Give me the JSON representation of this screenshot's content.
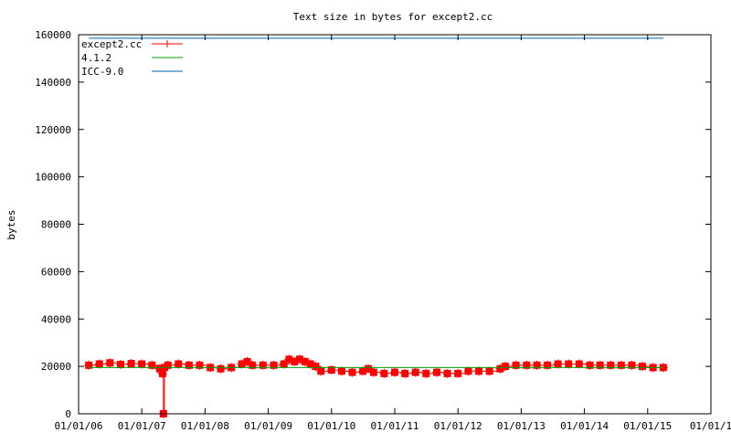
{
  "chart_data": {
    "type": "line",
    "title": "Text size in bytes for except2.cc",
    "xlabel": "",
    "ylabel": "bytes",
    "x_ticks": [
      "01/01/06",
      "01/01/07",
      "01/01/08",
      "01/01/09",
      "01/01/10",
      "01/01/11",
      "01/01/12",
      "01/01/13",
      "01/01/14",
      "01/01/15",
      "01/01/1"
    ],
    "y_ticks": [
      "0",
      "20000",
      "40000",
      "60000",
      "80000",
      "100000",
      "120000",
      "140000",
      "160000"
    ],
    "xlim": [
      "2006-01-01",
      "2016-01-01"
    ],
    "ylim": [
      0,
      160000
    ],
    "grid": false,
    "legend_placement": "top-left",
    "series": [
      {
        "name": "except2.cc",
        "color": "#ff0000",
        "style": "linespoints",
        "points": [
          [
            "2006-03-01",
            20500
          ],
          [
            "2006-05-01",
            21000
          ],
          [
            "2006-07-01",
            21500
          ],
          [
            "2006-09-01",
            20800
          ],
          [
            "2006-11-01",
            21200
          ],
          [
            "2007-01-01",
            21000
          ],
          [
            "2007-03-01",
            20500
          ],
          [
            "2007-04-15",
            19000
          ],
          [
            "2007-05-01",
            17000
          ],
          [
            "2007-05-06",
            0
          ],
          [
            "2007-05-12",
            19500
          ],
          [
            "2007-06-01",
            20500
          ],
          [
            "2007-08-01",
            21000
          ],
          [
            "2007-10-01",
            20500
          ],
          [
            "2007-12-01",
            20500
          ],
          [
            "2008-02-01",
            19500
          ],
          [
            "2008-04-01",
            19000
          ],
          [
            "2008-06-01",
            19500
          ],
          [
            "2008-08-01",
            21000
          ],
          [
            "2008-09-01",
            22000
          ],
          [
            "2008-10-01",
            20500
          ],
          [
            "2008-12-01",
            20500
          ],
          [
            "2009-02-01",
            20500
          ],
          [
            "2009-04-01",
            21000
          ],
          [
            "2009-05-01",
            23000
          ],
          [
            "2009-06-01",
            22000
          ],
          [
            "2009-07-01",
            23000
          ],
          [
            "2009-08-01",
            22000
          ],
          [
            "2009-09-01",
            21000
          ],
          [
            "2009-10-01",
            20000
          ],
          [
            "2009-11-01",
            18000
          ],
          [
            "2010-01-01",
            18500
          ],
          [
            "2010-03-01",
            18000
          ],
          [
            "2010-05-01",
            17500
          ],
          [
            "2010-07-01",
            18000
          ],
          [
            "2010-08-01",
            19000
          ],
          [
            "2010-09-01",
            17500
          ],
          [
            "2010-11-01",
            17000
          ],
          [
            "2011-01-01",
            17500
          ],
          [
            "2011-03-01",
            17000
          ],
          [
            "2011-05-01",
            17500
          ],
          [
            "2011-07-01",
            17000
          ],
          [
            "2011-09-01",
            17500
          ],
          [
            "2011-11-01",
            17000
          ],
          [
            "2012-01-01",
            17000
          ],
          [
            "2012-03-01",
            18000
          ],
          [
            "2012-05-01",
            18000
          ],
          [
            "2012-07-01",
            18000
          ],
          [
            "2012-09-01",
            19000
          ],
          [
            "2012-10-01",
            20000
          ],
          [
            "2012-12-01",
            20500
          ],
          [
            "2013-02-01",
            20500
          ],
          [
            "2013-04-01",
            20500
          ],
          [
            "2013-06-01",
            20500
          ],
          [
            "2013-08-01",
            21000
          ],
          [
            "2013-10-01",
            21000
          ],
          [
            "2013-12-01",
            21000
          ],
          [
            "2014-02-01",
            20500
          ],
          [
            "2014-04-01",
            20500
          ],
          [
            "2014-06-01",
            20500
          ],
          [
            "2014-08-01",
            20500
          ],
          [
            "2014-10-01",
            20500
          ],
          [
            "2014-12-01",
            20000
          ],
          [
            "2015-02-01",
            19500
          ],
          [
            "2015-04-01",
            19500
          ]
        ]
      },
      {
        "name": "4.1.2",
        "color": "#00a000",
        "style": "lines",
        "points": [
          [
            "2006-03-01",
            19500
          ],
          [
            "2015-04-01",
            19500
          ]
        ]
      },
      {
        "name": "ICC-9.0",
        "color": "#0060ad",
        "style": "lines",
        "points": [
          [
            "2006-03-01",
            158500
          ],
          [
            "2015-04-01",
            158500
          ]
        ]
      }
    ]
  }
}
